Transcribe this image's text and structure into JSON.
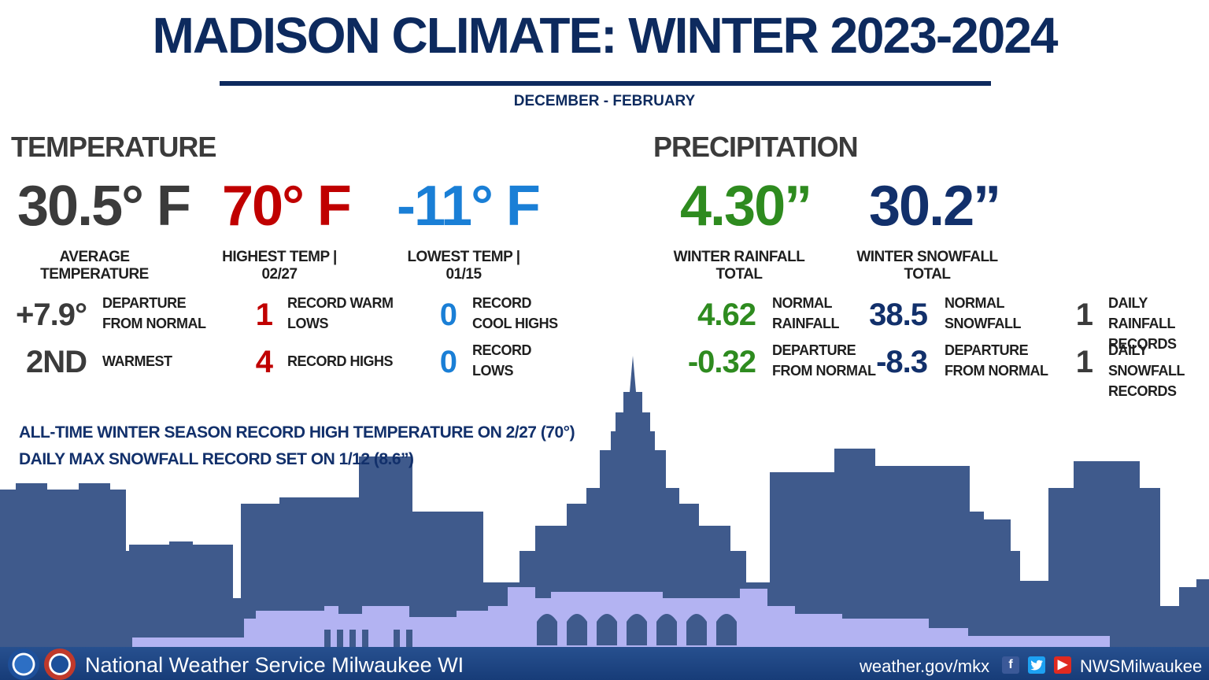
{
  "header": {
    "title": "MADISON CLIMATE: WINTER 2023-2024",
    "subtitle": "DECEMBER - FEBRUARY"
  },
  "temperature": {
    "heading": "TEMPERATURE",
    "average": {
      "value": "30.5° F",
      "label": "AVERAGE TEMPERATURE"
    },
    "highest": {
      "value": "70° F",
      "label": "HIGHEST TEMP | 02/27"
    },
    "lowest": {
      "value": "-11° F",
      "label": "LOWEST TEMP | 01/15"
    },
    "departure": {
      "value": "+7.9°",
      "label1": "DEPARTURE",
      "label2": "FROM NORMAL"
    },
    "rank": {
      "value": "2ND",
      "label": "WARMEST"
    },
    "record_warm_lows": {
      "value": "1",
      "label1": "RECORD WARM",
      "label2": "LOWS"
    },
    "record_highs": {
      "value": "4",
      "label": "RECORD HIGHS"
    },
    "record_cool_highs": {
      "value": "0",
      "label1": "RECORD",
      "label2": "COOL HIGHS"
    },
    "record_lows": {
      "value": "0",
      "label1": "RECORD",
      "label2": "LOWS"
    }
  },
  "precipitation": {
    "heading": "PRECIPITATION",
    "rainfall": {
      "value": "4.30”",
      "label": "WINTER RAINFALL TOTAL"
    },
    "snowfall": {
      "value": "30.2”",
      "label": "WINTER SNOWFALL TOTAL"
    },
    "normal_rainfall": {
      "value": "4.62",
      "label1": "NORMAL",
      "label2": "RAINFALL"
    },
    "rain_departure": {
      "value": "-0.32",
      "label1": "DEPARTURE",
      "label2": "FROM NORMAL"
    },
    "normal_snowfall": {
      "value": "38.5",
      "label1": "NORMAL",
      "label2": "SNOWFALL"
    },
    "snow_departure": {
      "value": "-8.3",
      "label1": "DEPARTURE",
      "label2": "FROM NORMAL"
    },
    "daily_rain_records": {
      "value": "1",
      "label1": "DAILY RAINFALL",
      "label2": "RECORDS"
    },
    "daily_snow_records": {
      "value": "1",
      "label1": "DAILY SNOWFALL",
      "label2": "RECORDS"
    }
  },
  "notes": [
    "ALL-TIME WINTER SEASON RECORD HIGH TEMPERATURE ON 2/27 (70°)",
    "DAILY MAX SNOWFALL RECORD SET ON 1/12 (8.6”)"
  ],
  "footer": {
    "office": "National Weather Service Milwaukee WI",
    "url": "weather.gov/mkx",
    "handle": "NWSMilwaukee",
    "icons": [
      "noaa-logo",
      "nws-logo",
      "facebook-icon",
      "twitter-icon",
      "youtube-icon"
    ]
  },
  "colors": {
    "navy": "#0d2a5e",
    "red": "#c00000",
    "blue": "#1a7fd6",
    "green": "#2e8b1f",
    "skyline": "#3f5a8c",
    "skyline_front": "#b3b3f2"
  }
}
